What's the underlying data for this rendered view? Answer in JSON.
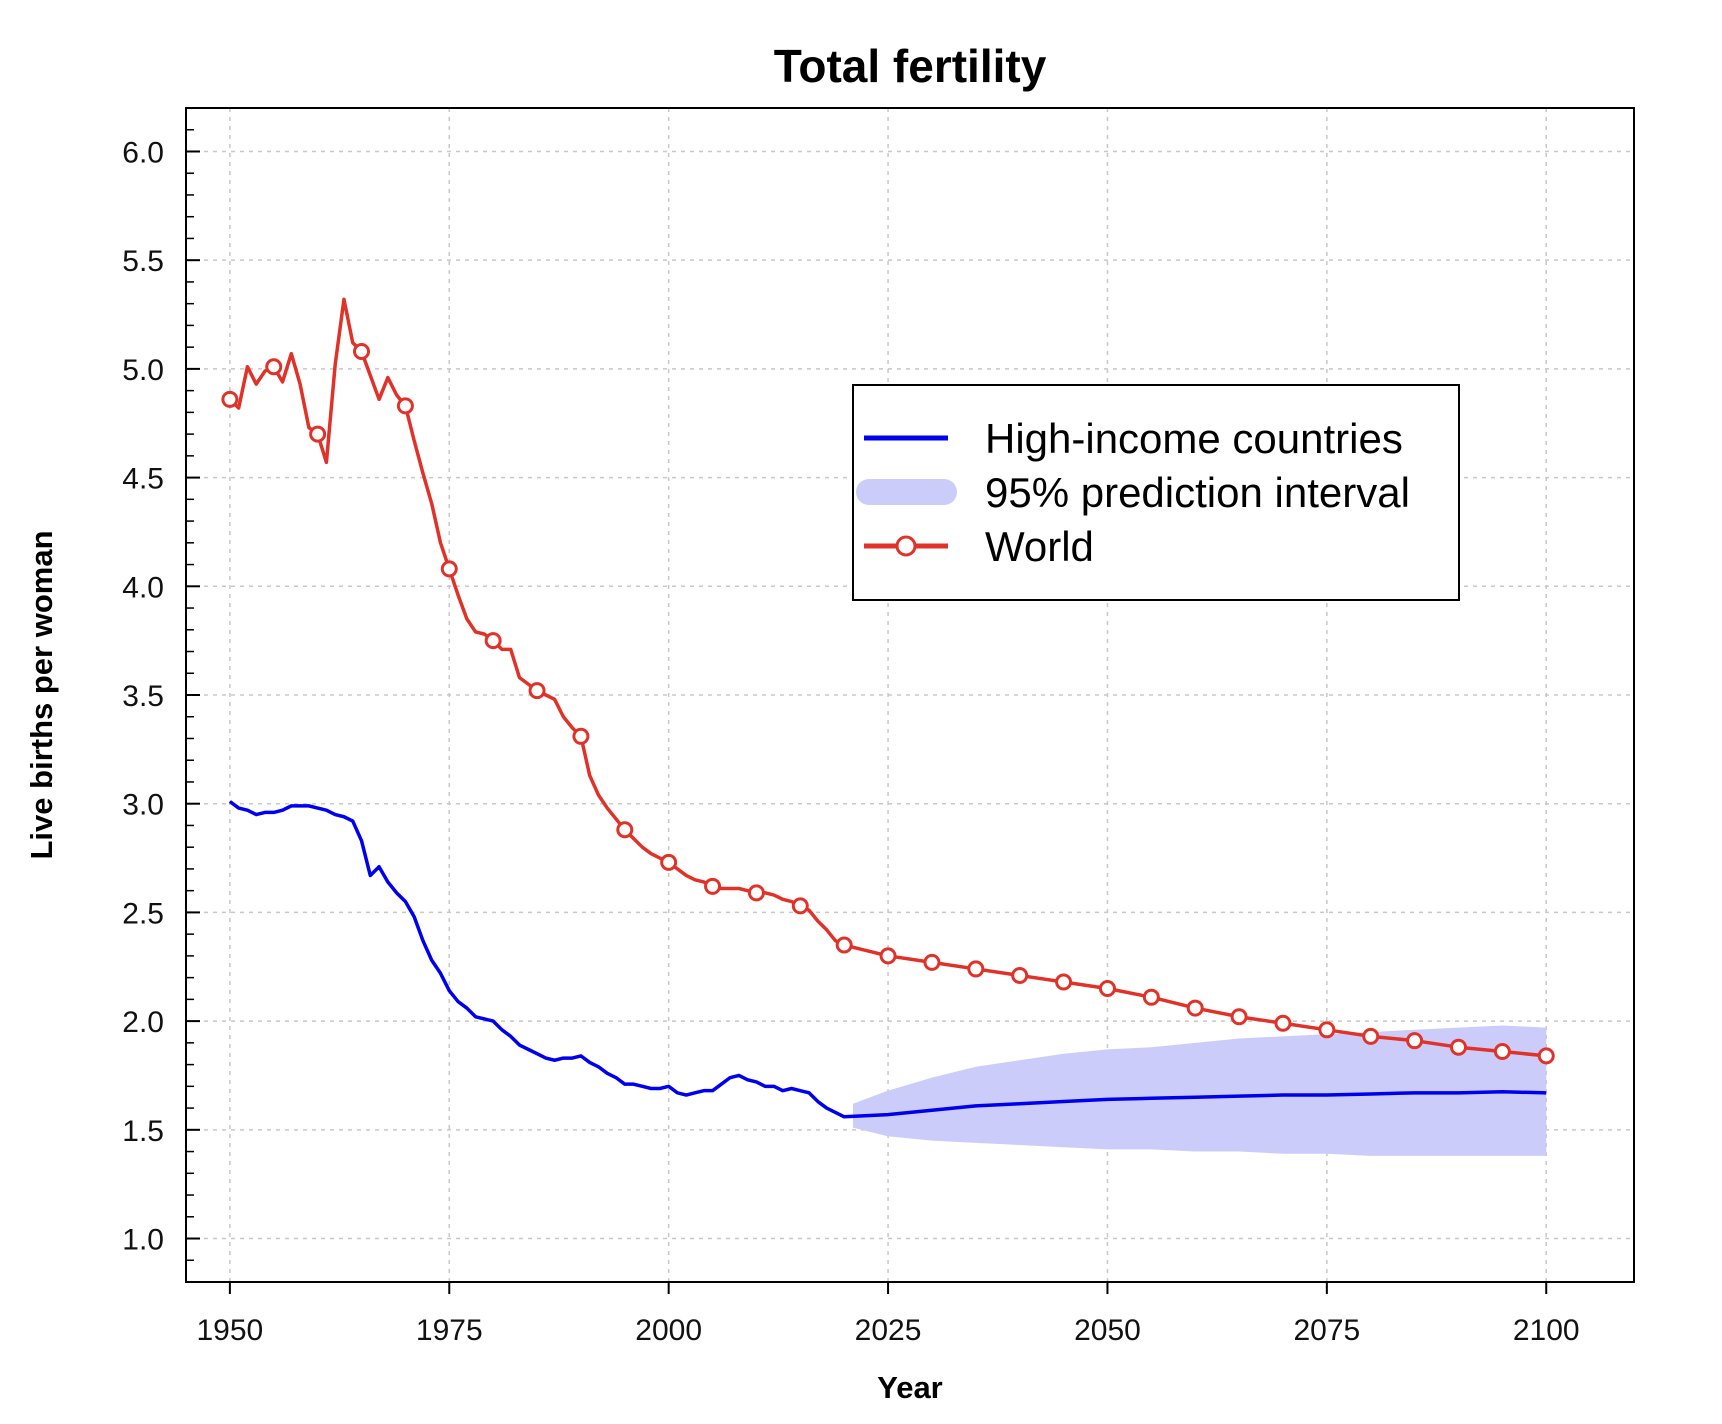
{
  "chart_data": {
    "type": "line",
    "title": "Total fertility",
    "xlabel": "Year",
    "ylabel": "Live births per woman",
    "xlim": [
      1945,
      2110
    ],
    "ylim": [
      0.8,
      6.2
    ],
    "x_ticks": [
      1950,
      1975,
      2000,
      2025,
      2050,
      2075,
      2100
    ],
    "x_tick_labels": [
      "1950",
      "1975",
      "2000",
      "2025",
      "2050",
      "2075",
      "2100"
    ],
    "y_ticks": [
      1.0,
      1.5,
      2.0,
      2.5,
      3.0,
      3.5,
      4.0,
      4.5,
      5.0,
      5.5,
      6.0
    ],
    "y_tick_labels": [
      "1.0",
      "1.5",
      "2.0",
      "2.5",
      "3.0",
      "3.5",
      "4.0",
      "4.5",
      "5.0",
      "5.5",
      "6.0"
    ],
    "grid": true,
    "legend_position": "top-right",
    "colors": {
      "high_income": "#0000ee",
      "interval": "#ccccfa",
      "world": "#e03228"
    },
    "series": [
      {
        "name": "High-income countries",
        "color": "#0000ee",
        "points": [
          [
            1950,
            3.01
          ],
          [
            1951,
            2.98
          ],
          [
            1952,
            2.97
          ],
          [
            1953,
            2.95
          ],
          [
            1954,
            2.96
          ],
          [
            1955,
            2.96
          ],
          [
            1956,
            2.97
          ],
          [
            1957,
            2.99
          ],
          [
            1958,
            2.99
          ],
          [
            1959,
            2.99
          ],
          [
            1960,
            2.98
          ],
          [
            1961,
            2.97
          ],
          [
            1962,
            2.95
          ],
          [
            1963,
            2.94
          ],
          [
            1964,
            2.92
          ],
          [
            1965,
            2.83
          ],
          [
            1966,
            2.67
          ],
          [
            1967,
            2.71
          ],
          [
            1968,
            2.64
          ],
          [
            1969,
            2.59
          ],
          [
            1970,
            2.55
          ],
          [
            1971,
            2.48
          ],
          [
            1972,
            2.37
          ],
          [
            1973,
            2.28
          ],
          [
            1974,
            2.22
          ],
          [
            1975,
            2.14
          ],
          [
            1976,
            2.09
          ],
          [
            1977,
            2.06
          ],
          [
            1978,
            2.02
          ],
          [
            1979,
            2.01
          ],
          [
            1980,
            2.0
          ],
          [
            1981,
            1.96
          ],
          [
            1982,
            1.93
          ],
          [
            1983,
            1.89
          ],
          [
            1984,
            1.87
          ],
          [
            1985,
            1.85
          ],
          [
            1986,
            1.83
          ],
          [
            1987,
            1.82
          ],
          [
            1988,
            1.83
          ],
          [
            1989,
            1.83
          ],
          [
            1990,
            1.84
          ],
          [
            1991,
            1.81
          ],
          [
            1992,
            1.79
          ],
          [
            1993,
            1.76
          ],
          [
            1994,
            1.74
          ],
          [
            1995,
            1.71
          ],
          [
            1996,
            1.71
          ],
          [
            1997,
            1.7
          ],
          [
            1998,
            1.69
          ],
          [
            1999,
            1.69
          ],
          [
            2000,
            1.7
          ],
          [
            2001,
            1.67
          ],
          [
            2002,
            1.66
          ],
          [
            2003,
            1.67
          ],
          [
            2004,
            1.68
          ],
          [
            2005,
            1.68
          ],
          [
            2006,
            1.71
          ],
          [
            2007,
            1.74
          ],
          [
            2008,
            1.75
          ],
          [
            2009,
            1.73
          ],
          [
            2010,
            1.72
          ],
          [
            2011,
            1.7
          ],
          [
            2012,
            1.7
          ],
          [
            2013,
            1.68
          ],
          [
            2014,
            1.69
          ],
          [
            2015,
            1.68
          ],
          [
            2016,
            1.67
          ],
          [
            2017,
            1.63
          ],
          [
            2018,
            1.6
          ],
          [
            2019,
            1.58
          ],
          [
            2020,
            1.56
          ],
          [
            2025,
            1.57
          ],
          [
            2030,
            1.59
          ],
          [
            2035,
            1.61
          ],
          [
            2040,
            1.62
          ],
          [
            2045,
            1.63
          ],
          [
            2050,
            1.64
          ],
          [
            2055,
            1.645
          ],
          [
            2060,
            1.65
          ],
          [
            2065,
            1.655
          ],
          [
            2070,
            1.66
          ],
          [
            2075,
            1.66
          ],
          [
            2080,
            1.665
          ],
          [
            2085,
            1.67
          ],
          [
            2090,
            1.67
          ],
          [
            2095,
            1.675
          ],
          [
            2100,
            1.67
          ]
        ]
      },
      {
        "name": "95% prediction interval",
        "color": "#ccccfa",
        "band": [
          [
            2021,
            1.51,
            1.62
          ],
          [
            2025,
            1.47,
            1.68
          ],
          [
            2030,
            1.45,
            1.74
          ],
          [
            2035,
            1.44,
            1.79
          ],
          [
            2040,
            1.43,
            1.82
          ],
          [
            2045,
            1.42,
            1.85
          ],
          [
            2050,
            1.41,
            1.87
          ],
          [
            2055,
            1.41,
            1.88
          ],
          [
            2060,
            1.4,
            1.9
          ],
          [
            2065,
            1.4,
            1.92
          ],
          [
            2070,
            1.39,
            1.93
          ],
          [
            2075,
            1.39,
            1.94
          ],
          [
            2080,
            1.38,
            1.95
          ],
          [
            2085,
            1.38,
            1.96
          ],
          [
            2090,
            1.38,
            1.97
          ],
          [
            2095,
            1.38,
            1.98
          ],
          [
            2100,
            1.38,
            1.97
          ]
        ]
      },
      {
        "name": "World",
        "color": "#e03228",
        "points": [
          [
            1950,
            4.86
          ],
          [
            1951,
            4.82
          ],
          [
            1952,
            5.01
          ],
          [
            1953,
            4.93
          ],
          [
            1954,
            4.99
          ],
          [
            1955,
            5.01
          ],
          [
            1956,
            4.94
          ],
          [
            1957,
            5.07
          ],
          [
            1958,
            4.93
          ],
          [
            1959,
            4.73
          ],
          [
            1960,
            4.7
          ],
          [
            1961,
            4.57
          ],
          [
            1962,
            5.02
          ],
          [
            1963,
            5.32
          ],
          [
            1964,
            5.12
          ],
          [
            1965,
            5.08
          ],
          [
            1966,
            4.97
          ],
          [
            1967,
            4.86
          ],
          [
            1968,
            4.96
          ],
          [
            1969,
            4.88
          ],
          [
            1970,
            4.83
          ],
          [
            1971,
            4.67
          ],
          [
            1972,
            4.52
          ],
          [
            1973,
            4.38
          ],
          [
            1974,
            4.2
          ],
          [
            1975,
            4.08
          ],
          [
            1976,
            3.96
          ],
          [
            1977,
            3.85
          ],
          [
            1978,
            3.79
          ],
          [
            1979,
            3.78
          ],
          [
            1980,
            3.75
          ],
          [
            1981,
            3.71
          ],
          [
            1982,
            3.71
          ],
          [
            1983,
            3.58
          ],
          [
            1984,
            3.55
          ],
          [
            1985,
            3.52
          ],
          [
            1986,
            3.5
          ],
          [
            1987,
            3.48
          ],
          [
            1988,
            3.4
          ],
          [
            1989,
            3.35
          ],
          [
            1990,
            3.31
          ],
          [
            1991,
            3.13
          ],
          [
            1992,
            3.04
          ],
          [
            1993,
            2.98
          ],
          [
            1994,
            2.93
          ],
          [
            1995,
            2.88
          ],
          [
            1996,
            2.84
          ],
          [
            1997,
            2.8
          ],
          [
            1998,
            2.77
          ],
          [
            1999,
            2.75
          ],
          [
            2000,
            2.73
          ],
          [
            2001,
            2.7
          ],
          [
            2002,
            2.67
          ],
          [
            2003,
            2.65
          ],
          [
            2004,
            2.64
          ],
          [
            2005,
            2.62
          ],
          [
            2006,
            2.61
          ],
          [
            2007,
            2.61
          ],
          [
            2008,
            2.61
          ],
          [
            2009,
            2.6
          ],
          [
            2010,
            2.59
          ],
          [
            2011,
            2.59
          ],
          [
            2012,
            2.58
          ],
          [
            2013,
            2.56
          ],
          [
            2014,
            2.55
          ],
          [
            2015,
            2.53
          ],
          [
            2016,
            2.51
          ],
          [
            2017,
            2.46
          ],
          [
            2018,
            2.42
          ],
          [
            2019,
            2.37
          ],
          [
            2020,
            2.35
          ],
          [
            2025,
            2.3
          ],
          [
            2030,
            2.27
          ],
          [
            2035,
            2.24
          ],
          [
            2040,
            2.21
          ],
          [
            2045,
            2.18
          ],
          [
            2050,
            2.15
          ],
          [
            2055,
            2.11
          ],
          [
            2060,
            2.06
          ],
          [
            2065,
            2.02
          ],
          [
            2070,
            1.99
          ],
          [
            2075,
            1.96
          ],
          [
            2080,
            1.93
          ],
          [
            2085,
            1.91
          ],
          [
            2090,
            1.88
          ],
          [
            2095,
            1.86
          ],
          [
            2100,
            1.84
          ]
        ],
        "marker_years": [
          1950,
          1955,
          1960,
          1965,
          1970,
          1975,
          1980,
          1985,
          1990,
          1995,
          2000,
          2005,
          2010,
          2015,
          2020,
          2025,
          2030,
          2035,
          2040,
          2045,
          2050,
          2055,
          2060,
          2065,
          2070,
          2075,
          2080,
          2085,
          2090,
          2095,
          2100
        ]
      }
    ]
  }
}
